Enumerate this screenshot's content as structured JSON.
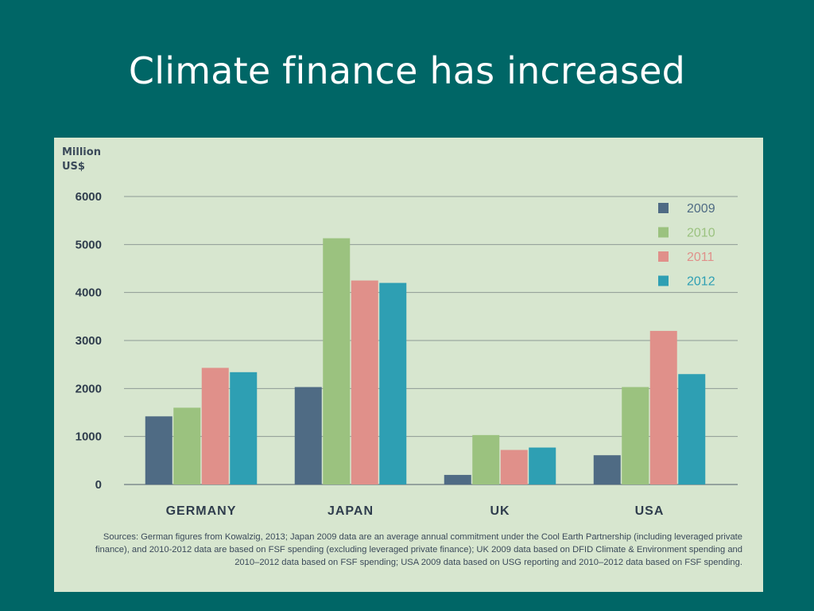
{
  "slide": {
    "title": "Climate finance has increased"
  },
  "chart_data": {
    "type": "bar",
    "title": "",
    "xlabel": "",
    "ylabel_lines": [
      "Million",
      "US$"
    ],
    "ylim": [
      0,
      6000
    ],
    "yticks": [
      0,
      1000,
      2000,
      3000,
      4000,
      5000,
      6000
    ],
    "grid": true,
    "legend_position": "top-right",
    "categories": [
      "GERMANY",
      "JAPAN",
      "UK",
      "USA"
    ],
    "series": [
      {
        "name": "2009",
        "color": "#4f6b84",
        "values": [
          1420,
          2030,
          200,
          610
        ]
      },
      {
        "name": "2010",
        "color": "#9bc27f",
        "values": [
          1600,
          5130,
          1030,
          2030
        ]
      },
      {
        "name": "2011",
        "color": "#e0908a",
        "values": [
          2430,
          4250,
          720,
          3200
        ]
      },
      {
        "name": "2012",
        "color": "#2e9fb3",
        "values": [
          2340,
          4200,
          770,
          2300
        ]
      }
    ],
    "sources": "Sources: German figures from Kowalzig, 2013; Japan 2009 data are an average annual commitment under the Cool Earth Partnership (including leveraged private finance), and 2010-2012 data are based on FSF spending (excluding leveraged private finance); UK 2009 data based on DFID Climate & Environment spending and 2010–2012 data based on FSF spending; USA 2009 data based on USG reporting and 2010–2012 data based on FSF spending."
  }
}
